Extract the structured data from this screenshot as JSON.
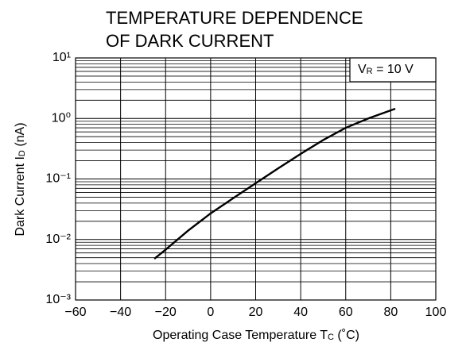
{
  "chart_data": {
    "type": "line",
    "title": [
      "TEMPERATURE DEPENDENCE",
      "OF DARK CURRENT"
    ],
    "x_label": {
      "text": "Operating Case Temperature  T",
      "sub": "C",
      "rest": " (˚C)"
    },
    "y_label": {
      "text": "Dark Current  I",
      "sub": "D",
      "rest": " (nA)"
    },
    "annotation": {
      "text": "V",
      "sub": "R",
      "rest": " = 10 V"
    },
    "x": [
      -25,
      -20,
      -10,
      0,
      10,
      20,
      30,
      40,
      50,
      60,
      70,
      82
    ],
    "series": [
      {
        "color": "#000000",
        "values": [
          0.0048,
          0.0068,
          0.014,
          0.027,
          0.048,
          0.085,
          0.15,
          0.26,
          0.44,
          0.7,
          1.0,
          1.45
        ]
      }
    ],
    "xlim": [
      -60,
      100
    ],
    "xticks": [
      {
        "value": -60,
        "label": "−60"
      },
      {
        "value": -40,
        "label": "−40"
      },
      {
        "value": -20,
        "label": "−20"
      },
      0,
      20,
      40,
      60,
      80,
      100
    ],
    "ylim": [
      0.001,
      10
    ],
    "yticks": [
      {
        "value": 0.001,
        "label": "10⁻³"
      },
      {
        "value": 0.01,
        "label": "10⁻²"
      },
      {
        "value": 0.1,
        "label": "10⁻¹"
      },
      {
        "value": 1,
        "label": "10⁰"
      },
      {
        "value": 10,
        "label": "10¹"
      }
    ],
    "y_scale": "log",
    "grid": true,
    "minor_grid": true
  }
}
